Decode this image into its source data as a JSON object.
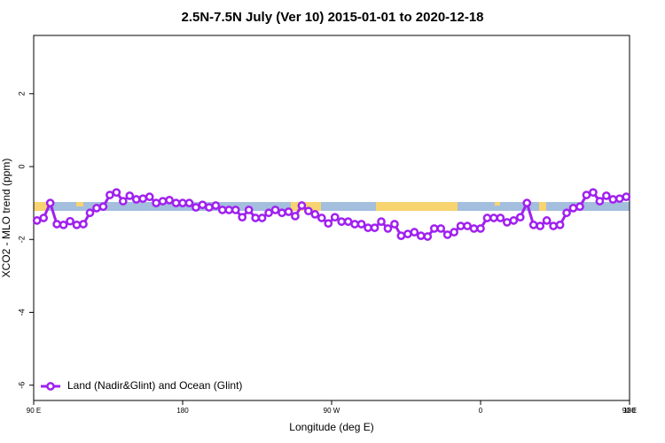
{
  "chart_data": {
    "type": "line",
    "title": "2.5N-7.5N July (Ver 10)   2015-01-01 to 2020-12-18",
    "x_label": "Longitude (deg E)",
    "y_label": "XCO2 - MLO trend (ppm)",
    "x": [
      92,
      96,
      100,
      104,
      108,
      112,
      116,
      120,
      124,
      128,
      132,
      136,
      140,
      144,
      148,
      152,
      156,
      160,
      164,
      168,
      172,
      176,
      180,
      184,
      188,
      192,
      196,
      200,
      204,
      208,
      212,
      216,
      220,
      224,
      228,
      232,
      236,
      240,
      244,
      248,
      252,
      256,
      260,
      264,
      268,
      272,
      276,
      280,
      284,
      288,
      292,
      296,
      300,
      304,
      308,
      312,
      316,
      320,
      324,
      328,
      332,
      336,
      340,
      344,
      348,
      352,
      356,
      360,
      364,
      368,
      372,
      376,
      380,
      384,
      388,
      392,
      396,
      400,
      404,
      408,
      412,
      416,
      420,
      424,
      428,
      432,
      436,
      440,
      444,
      448
    ],
    "series": [
      {
        "name": "Land (Nadir&Glint) and Ocean (Glint)",
        "color": "#a020f0",
        "values": [
          -1.48,
          -1.41,
          -1.0,
          -1.58,
          -1.6,
          -1.5,
          -1.6,
          -1.58,
          -1.27,
          -1.14,
          -1.1,
          -0.78,
          -0.71,
          -0.95,
          -0.8,
          -0.9,
          -0.88,
          -0.83,
          -1.0,
          -0.95,
          -0.92,
          -1.0,
          -1.0,
          -1.0,
          -1.12,
          -1.05,
          -1.12,
          -1.07,
          -1.19,
          -1.19,
          -1.19,
          -1.39,
          -1.19,
          -1.41,
          -1.41,
          -1.27,
          -1.19,
          -1.27,
          -1.24,
          -1.36,
          -1.07,
          -1.22,
          -1.31,
          -1.41,
          -1.56,
          -1.39,
          -1.51,
          -1.51,
          -1.58,
          -1.58,
          -1.68,
          -1.68,
          -1.51,
          -1.7,
          -1.58,
          -1.9,
          -1.85,
          -1.8,
          -1.9,
          -1.92,
          -1.7,
          -1.7,
          -1.87,
          -1.8,
          -1.63,
          -1.63,
          -1.7,
          -1.7,
          -1.41,
          -1.41,
          -1.41,
          -1.53,
          -1.48,
          -1.39,
          -1.0,
          -1.6,
          -1.63,
          -1.48,
          -1.63,
          -1.6,
          -1.27,
          -1.14,
          -1.1,
          -0.78,
          -0.71,
          -0.95,
          -0.8,
          -0.9,
          -0.88,
          -0.83
        ]
      }
    ],
    "xlim": [
      90,
      450
    ],
    "xticks": [
      {
        "value": 90,
        "label": "90 E"
      },
      180,
      {
        "value": 270,
        "label": "90 W"
      },
      {
        "value": 360,
        "label": "0"
      },
      {
        "value": 450,
        "label": "90 E"
      },
      {
        "value": 540,
        "label": "180"
      }
    ],
    "ylim": [
      -6.42,
      3.6
    ],
    "yticks": [
      -6,
      -4,
      -2,
      0,
      2
    ],
    "legend": "bottom-left"
  }
}
